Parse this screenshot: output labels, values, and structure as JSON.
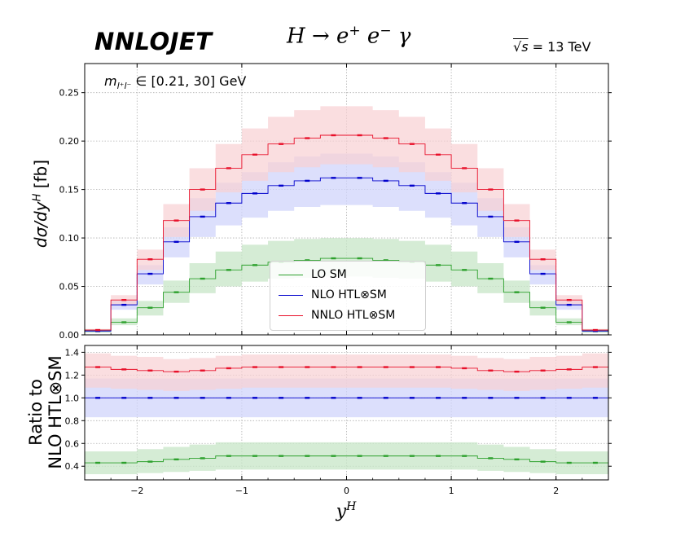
{
  "header": {
    "logo_text": "NNLOJET",
    "process": {
      "lhs": "H",
      "arrow": "→",
      "p1": "e",
      "p1_sup": "+",
      "p2": "e",
      "p2_sup": "−",
      "p3": "γ"
    },
    "energy": {
      "sqrt_s": "√s",
      "eq": " = 13 TeV"
    },
    "cut": {
      "m": "m",
      "sub": "l⁺l⁻",
      "range": " ∈ [0.21, 30] GeV"
    }
  },
  "legend": {
    "lo": "LO SM",
    "nlo": "NLO HTL⊗SM",
    "nnlo": "NNLO HTL⊗SM"
  },
  "axes": {
    "ylabel_main_prefix": "dσ/dy",
    "ylabel_main_sup": "H",
    "ylabel_main_suffix": " [fb]",
    "ylabel_ratio_line1": "Ratio to",
    "ylabel_ratio_line2": "NLO HTL⊗SM",
    "xlabel": "y",
    "xlabel_sup": "H"
  },
  "colors": {
    "lo": "#2ca02c",
    "nlo": "#0000cc",
    "nnlo": "#e8102a",
    "lo_band": "#c7e6c7",
    "nlo_band": "#d0d4fb",
    "nnlo_band": "#f8d0d3"
  },
  "chart_data": [
    {
      "type": "line",
      "title": "H → e+e−γ",
      "xlabel": "yH",
      "ylabel": "dσ/dyH [fb]",
      "xlim": [
        -2.5,
        2.5
      ],
      "ylim": [
        0,
        0.28
      ],
      "yticks": [
        0.0,
        0.05,
        0.1,
        0.15,
        0.2,
        0.25
      ],
      "ytick_labels": [
        "0.00",
        "0.05",
        "0.10",
        "0.15",
        "0.20",
        "0.25"
      ],
      "bin_edges": [
        -2.5,
        -2.25,
        -2.0,
        -1.75,
        -1.5,
        -1.25,
        -1.0,
        -0.75,
        -0.5,
        -0.25,
        0.0,
        0.25,
        0.5,
        0.75,
        1.0,
        1.25,
        1.5,
        1.75,
        2.0,
        2.25,
        2.5
      ],
      "series": [
        {
          "name": "LO SM",
          "values": [
            0.004,
            0.013,
            0.028,
            0.044,
            0.058,
            0.067,
            0.072,
            0.075,
            0.077,
            0.079,
            0.079,
            0.077,
            0.075,
            0.072,
            0.067,
            0.058,
            0.044,
            0.028,
            0.013,
            0.004
          ],
          "band_low": [
            0.002,
            0.01,
            0.02,
            0.033,
            0.043,
            0.05,
            0.055,
            0.058,
            0.059,
            0.06,
            0.06,
            0.059,
            0.058,
            0.055,
            0.05,
            0.043,
            0.033,
            0.02,
            0.01,
            0.002
          ],
          "band_high": [
            0.006,
            0.017,
            0.035,
            0.056,
            0.074,
            0.086,
            0.093,
            0.097,
            0.099,
            0.1,
            0.1,
            0.099,
            0.097,
            0.093,
            0.086,
            0.074,
            0.056,
            0.035,
            0.017,
            0.006
          ]
        },
        {
          "name": "NLO HTL⊗SM",
          "values": [
            0.004,
            0.031,
            0.063,
            0.096,
            0.122,
            0.136,
            0.146,
            0.154,
            0.159,
            0.162,
            0.162,
            0.159,
            0.154,
            0.146,
            0.136,
            0.122,
            0.096,
            0.063,
            0.031,
            0.004
          ],
          "band_low": [
            0.003,
            0.026,
            0.052,
            0.08,
            0.101,
            0.113,
            0.121,
            0.128,
            0.132,
            0.134,
            0.134,
            0.132,
            0.128,
            0.121,
            0.113,
            0.101,
            0.08,
            0.052,
            0.026,
            0.003
          ],
          "band_high": [
            0.005,
            0.036,
            0.072,
            0.111,
            0.141,
            0.157,
            0.168,
            0.178,
            0.184,
            0.187,
            0.187,
            0.184,
            0.178,
            0.168,
            0.157,
            0.141,
            0.111,
            0.072,
            0.036,
            0.005
          ]
        },
        {
          "name": "NNLO HTL⊗SM",
          "values": [
            0.005,
            0.036,
            0.078,
            0.118,
            0.15,
            0.172,
            0.186,
            0.197,
            0.203,
            0.206,
            0.206,
            0.203,
            0.197,
            0.186,
            0.172,
            0.15,
            0.118,
            0.078,
            0.036,
            0.005
          ],
          "band_low": [
            0.004,
            0.031,
            0.067,
            0.101,
            0.128,
            0.147,
            0.159,
            0.168,
            0.173,
            0.176,
            0.176,
            0.173,
            0.168,
            0.159,
            0.147,
            0.128,
            0.101,
            0.067,
            0.031,
            0.004
          ],
          "band_high": [
            0.006,
            0.041,
            0.088,
            0.135,
            0.172,
            0.197,
            0.213,
            0.225,
            0.232,
            0.236,
            0.236,
            0.232,
            0.225,
            0.213,
            0.197,
            0.172,
            0.135,
            0.088,
            0.041,
            0.006
          ]
        }
      ]
    },
    {
      "type": "line",
      "xlabel": "yH",
      "ylabel": "Ratio to NLO HTL⊗SM",
      "xlim": [
        -2.5,
        2.5
      ],
      "ylim": [
        0.28,
        1.46
      ],
      "xticks": [
        -2,
        -1,
        0,
        1,
        2
      ],
      "xtick_labels": [
        "−2",
        "−1",
        "0",
        "1",
        "2"
      ],
      "yticks": [
        0.4,
        0.6,
        0.8,
        1.0,
        1.2,
        1.4
      ],
      "ytick_labels": [
        "0.4",
        "0.6",
        "0.8",
        "1.0",
        "1.2",
        "1.4"
      ],
      "bin_edges": [
        -2.5,
        -2.25,
        -2.0,
        -1.75,
        -1.5,
        -1.25,
        -1.0,
        -0.75,
        -0.5,
        -0.25,
        0.0,
        0.25,
        0.5,
        0.75,
        1.0,
        1.25,
        1.5,
        1.75,
        2.0,
        2.25,
        2.5
      ],
      "series": [
        {
          "name": "LO SM",
          "values": [
            0.43,
            0.43,
            0.44,
            0.46,
            0.47,
            0.49,
            0.49,
            0.49,
            0.49,
            0.49,
            0.49,
            0.49,
            0.49,
            0.49,
            0.49,
            0.47,
            0.46,
            0.44,
            0.43,
            0.43
          ],
          "band_low": [
            0.33,
            0.33,
            0.34,
            0.35,
            0.36,
            0.37,
            0.37,
            0.37,
            0.37,
            0.37,
            0.37,
            0.37,
            0.37,
            0.37,
            0.37,
            0.36,
            0.35,
            0.34,
            0.33,
            0.33
          ],
          "band_high": [
            0.53,
            0.53,
            0.55,
            0.57,
            0.59,
            0.61,
            0.61,
            0.61,
            0.61,
            0.61,
            0.61,
            0.61,
            0.61,
            0.61,
            0.61,
            0.59,
            0.57,
            0.55,
            0.53,
            0.53
          ]
        },
        {
          "name": "NLO HTL⊗SM",
          "values": [
            1.0,
            1.0,
            1.0,
            1.0,
            1.0,
            1.0,
            1.0,
            1.0,
            1.0,
            1.0,
            1.0,
            1.0,
            1.0,
            1.0,
            1.0,
            1.0,
            1.0,
            1.0,
            1.0,
            1.0
          ],
          "band_low": [
            0.83,
            0.83,
            0.83,
            0.83,
            0.83,
            0.83,
            0.83,
            0.83,
            0.83,
            0.83,
            0.83,
            0.83,
            0.83,
            0.83,
            0.83,
            0.83,
            0.83,
            0.83,
            0.83,
            0.83
          ],
          "band_high": [
            1.17,
            1.17,
            1.17,
            1.17,
            1.17,
            1.17,
            1.17,
            1.17,
            1.17,
            1.17,
            1.17,
            1.17,
            1.17,
            1.17,
            1.17,
            1.17,
            1.17,
            1.17,
            1.17,
            1.17
          ]
        },
        {
          "name": "NNLO HTL⊗SM",
          "values": [
            1.27,
            1.25,
            1.24,
            1.23,
            1.24,
            1.26,
            1.27,
            1.27,
            1.27,
            1.27,
            1.27,
            1.27,
            1.27,
            1.27,
            1.26,
            1.24,
            1.23,
            1.24,
            1.25,
            1.27
          ],
          "band_low": [
            1.09,
            1.08,
            1.07,
            1.06,
            1.07,
            1.08,
            1.09,
            1.09,
            1.09,
            1.09,
            1.09,
            1.09,
            1.09,
            1.09,
            1.08,
            1.07,
            1.06,
            1.07,
            1.08,
            1.09
          ],
          "band_high": [
            1.39,
            1.37,
            1.36,
            1.34,
            1.35,
            1.37,
            1.38,
            1.38,
            1.38,
            1.38,
            1.38,
            1.38,
            1.38,
            1.38,
            1.37,
            1.35,
            1.34,
            1.36,
            1.37,
            1.39
          ]
        }
      ]
    }
  ]
}
